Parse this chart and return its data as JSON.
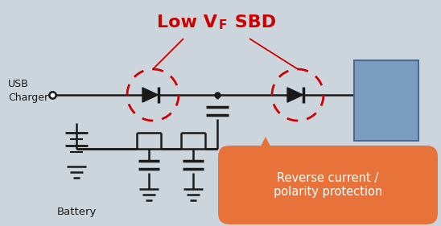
{
  "bg_color": "#cdd5dc",
  "title_color": "#cc0000",
  "title_fontsize": 16,
  "usb_label": "USB\nCharger",
  "battery_label": "Battery",
  "annotation_text": "Reverse current /\npolarity protection",
  "annotation_color": "#e8733a",
  "annotation_text_color": "#ffffff",
  "line_color": "#1a1a1a",
  "line_width": 1.8,
  "circle_color": "#cc0000",
  "box_color": "#7a9dbf",
  "box_edge_color": "#4a6a8f"
}
